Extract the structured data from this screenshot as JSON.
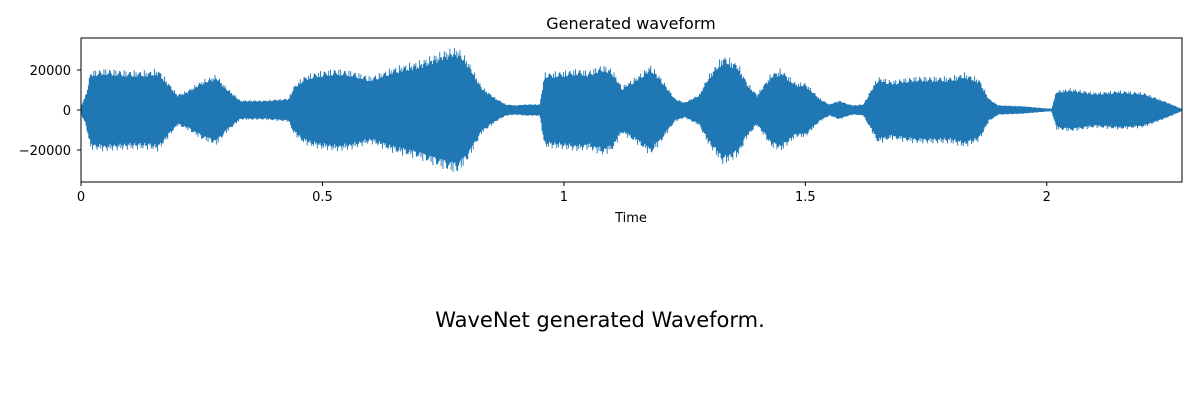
{
  "chart_data": {
    "type": "line",
    "title": "Generated waveform",
    "xlabel": "Time",
    "ylabel": "",
    "xlim": [
      0,
      2.28
    ],
    "ylim": [
      -36000,
      36000
    ],
    "x_ticks": [
      {
        "value": 0,
        "label": "0"
      },
      {
        "value": 0.5,
        "label": "0.5"
      },
      {
        "value": 1,
        "label": "1"
      },
      {
        "value": 1.5,
        "label": "1.5"
      },
      {
        "value": 2,
        "label": "2"
      }
    ],
    "y_ticks": [
      {
        "value": 20000,
        "label": "20000"
      },
      {
        "value": 0,
        "label": "0"
      },
      {
        "value": -20000,
        "label": "−20000"
      }
    ],
    "grid": false,
    "color": "#1f77b4",
    "series": [
      {
        "envelope_time": [
          0,
          0.01,
          0.02,
          0.05,
          0.1,
          0.14,
          0.16,
          0.2,
          0.22,
          0.25,
          0.28,
          0.3,
          0.33,
          0.38,
          0.43,
          0.44,
          0.46,
          0.48,
          0.5,
          0.53,
          0.56,
          0.6,
          0.62,
          0.65,
          0.7,
          0.74,
          0.76,
          0.78,
          0.8,
          0.83,
          0.86,
          0.88,
          0.9,
          0.92,
          0.95,
          0.96,
          1.0,
          1.03,
          1.05,
          1.08,
          1.1,
          1.12,
          1.15,
          1.18,
          1.2,
          1.23,
          1.25,
          1.28,
          1.3,
          1.33,
          1.36,
          1.38,
          1.4,
          1.43,
          1.45,
          1.48,
          1.5,
          1.53,
          1.55,
          1.57,
          1.59,
          1.6,
          1.62,
          1.65,
          1.68,
          1.7,
          1.73,
          1.75,
          1.8,
          1.83,
          1.86,
          1.88,
          1.9,
          1.95,
          2.0,
          2.01,
          2.02,
          2.05,
          2.1,
          2.15,
          2.2,
          2.25,
          2.28
        ],
        "envelope_amplitude": [
          2000,
          8000,
          20000,
          21000,
          20000,
          20000,
          21000,
          8000,
          10000,
          15000,
          18000,
          12000,
          5000,
          5000,
          6000,
          12000,
          17000,
          19000,
          20000,
          21000,
          20000,
          17000,
          19000,
          22000,
          25000,
          29000,
          31000,
          32000,
          26000,
          12000,
          6000,
          3000,
          2500,
          3000,
          3000,
          19000,
          20000,
          21000,
          20000,
          23000,
          21000,
          12000,
          17000,
          23000,
          17000,
          6000,
          4000,
          8000,
          18000,
          28000,
          24000,
          14000,
          8000,
          19000,
          21000,
          14000,
          14000,
          6000,
          3000,
          5000,
          3000,
          2500,
          3000,
          17000,
          15000,
          16000,
          17000,
          17000,
          17000,
          19000,
          16000,
          6000,
          2500,
          2000,
          800,
          700,
          10000,
          11000,
          9000,
          10000,
          9000,
          4000,
          500
        ]
      }
    ]
  },
  "caption": "WaveNet generated Waveform."
}
